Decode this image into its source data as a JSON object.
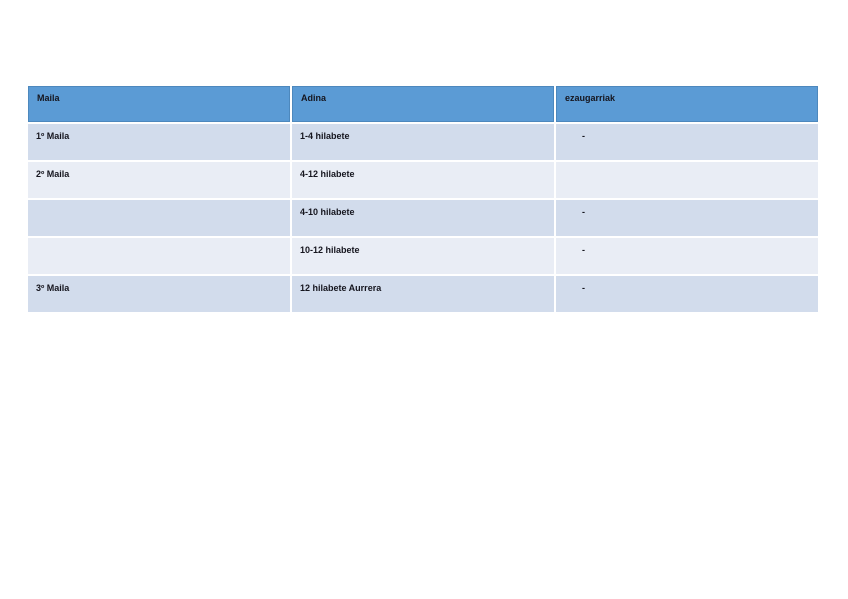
{
  "page": {
    "background": "#ffffff"
  },
  "table": {
    "columns": [
      {
        "label": "Maila"
      },
      {
        "label": "Adina"
      },
      {
        "label": "ezaugarriak"
      }
    ],
    "rows": [
      {
        "maila": "1º Maila",
        "adina": "1-4 hilabete",
        "ezaugarriak": "-"
      },
      {
        "maila": "2º Maila",
        "adina": "4-12 hilabete",
        "ezaugarriak": ""
      },
      {
        "maila": "",
        "adina": "4-10 hilabete",
        "ezaugarriak": "-"
      },
      {
        "maila": "",
        "adina": "10-12 hilabete",
        "ezaugarriak": "-"
      },
      {
        "maila": "3º Maila",
        "adina": "12 hilabete Aurrera",
        "ezaugarriak": "-"
      }
    ],
    "colors": {
      "header_bg": "#5B9BD5",
      "header_border": "#4d88bd",
      "row_dark": "#D2DCEC",
      "row_light": "#E9EDF5",
      "text": "#15151e",
      "divider": "#ffffff",
      "page_bg": "#ffffff"
    }
  }
}
